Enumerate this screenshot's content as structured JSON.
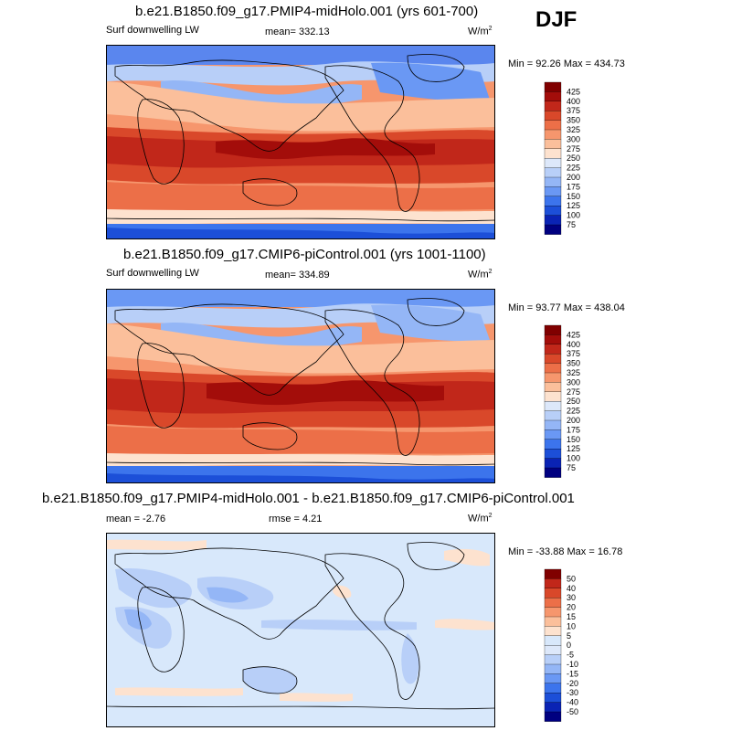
{
  "season": "DJF",
  "colorbar_colors": {
    "flux": [
      "#000080",
      "#0a23b4",
      "#1c4fd8",
      "#3c74ec",
      "#6a98f4",
      "#94b6f6",
      "#b8cff8",
      "#dde8fa",
      "#fde2cf",
      "#fbbf9b",
      "#f6966d",
      "#ec6f48",
      "#d9482a",
      "#c1271a",
      "#a30d0a",
      "#800000"
    ],
    "diff": [
      "#000080",
      "#0a23b4",
      "#1c4fd8",
      "#3c74ec",
      "#6a98f4",
      "#94b6f6",
      "#b8cff8",
      "#dde8fa",
      "#d8e8fb",
      "#fde2cf",
      "#fbbf9b",
      "#f6966d",
      "#ec6f48",
      "#d9482a",
      "#c1271a",
      "#800000"
    ]
  },
  "panels": [
    {
      "title": "b.e21.B1850.f09_g17.PMIP4-midHolo.001 (yrs 601-700)",
      "left_label": "Surf downwelling LW",
      "center_label": "mean= 332.13",
      "units_base": "W/m",
      "units_exp": "2",
      "minmax": "Min =  92.26 Max = 434.73",
      "colorbar_ticks": [
        "425",
        "400",
        "375",
        "350",
        "325",
        "300",
        "275",
        "250",
        "225",
        "200",
        "175",
        "150",
        "125",
        "100",
        "75"
      ]
    },
    {
      "title": "b.e21.B1850.f09_g17.CMIP6-piControl.001 (yrs 1001-1100)",
      "left_label": "Surf downwelling LW",
      "center_label": "mean= 334.89",
      "units_base": "W/m",
      "units_exp": "2",
      "minmax": "Min =  93.77 Max = 438.04",
      "colorbar_ticks": [
        "425",
        "400",
        "375",
        "350",
        "325",
        "300",
        "275",
        "250",
        "225",
        "200",
        "175",
        "150",
        "125",
        "100",
        "75"
      ]
    },
    {
      "title": "b.e21.B1850.f09_g17.PMIP4-midHolo.001 - b.e21.B1850.f09_g17.CMIP6-piControl.001",
      "left_label": "mean =  -2.76",
      "center_label": "rmse =   4.21",
      "units_base": "W/m",
      "units_exp": "2",
      "minmax": "Min = -33.88 Max =  16.78",
      "colorbar_ticks": [
        "50",
        "40",
        "30",
        "20",
        "15",
        "10",
        "5",
        "0",
        "-5",
        "-10",
        "-15",
        "-20",
        "-30",
        "-40",
        "-50"
      ]
    }
  ]
}
